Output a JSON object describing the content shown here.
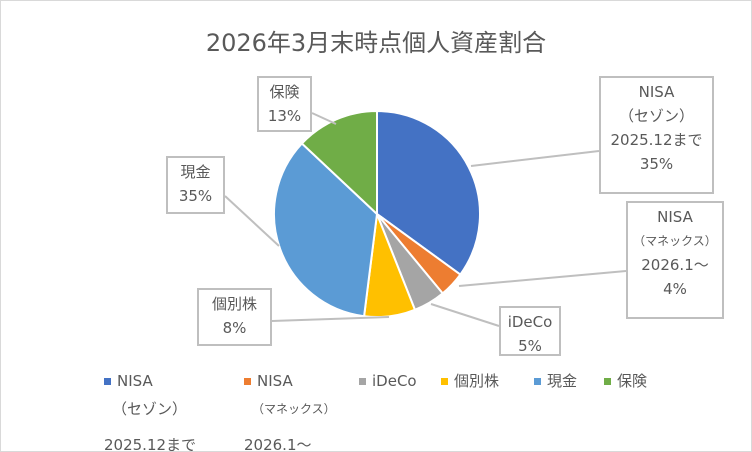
{
  "chart_data": {
    "type": "pie",
    "title": "2026年3月末時点個人資産割合",
    "slices": [
      {
        "name": "NISA（セゾン）2025.12まで",
        "label_lines": [
          "NISA",
          "（セゾン）",
          "2025.12まで"
        ],
        "value": 35,
        "label": "35%",
        "color": "#4472C4"
      },
      {
        "name": "NISA（マネックス）2026.1〜",
        "label_lines": [
          "NISA",
          "（マネックス）",
          "2026.1〜"
        ],
        "value": 4,
        "label": "4%",
        "color": "#ED7D31"
      },
      {
        "name": "iDeCo",
        "label_lines": [
          "iDeCo"
        ],
        "value": 5,
        "label": "5%",
        "color": "#A5A5A5"
      },
      {
        "name": "個別株",
        "label_lines": [
          "個別株"
        ],
        "value": 8,
        "label": "8%",
        "color": "#FFC000"
      },
      {
        "name": "現金",
        "label_lines": [
          "現金"
        ],
        "value": 35,
        "label": "35%",
        "color": "#5B9BD5"
      },
      {
        "name": "保険",
        "label_lines": [
          "保険"
        ],
        "value": 13,
        "label": "13%",
        "color": "#70AD47"
      }
    ],
    "legend_placement": "bottom"
  }
}
